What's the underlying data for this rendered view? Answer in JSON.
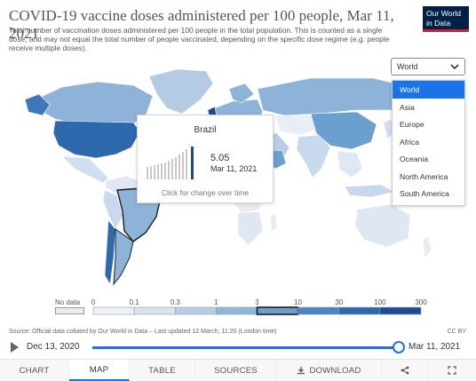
{
  "header": {
    "title": "COVID-19 vaccine doses administered per 100 people, Mar 11, 2021",
    "subtitle": "Total number of vaccination doses administered per 100 people in the total population. This is counted as a single dose, and may not equal the total number of people vaccinated, depending on the specific dose regime (e.g. people receive multiple doses).",
    "logo_line1": "Our World",
    "logo_line2": "in Data"
  },
  "region_select": {
    "selected": "World",
    "options": [
      "World",
      "Asia",
      "Europe",
      "Africa",
      "Oceania",
      "North America",
      "South America"
    ],
    "highlighted": "World"
  },
  "tooltip": {
    "country": "Brazil",
    "value": "5.05",
    "date": "Mar 11, 2021",
    "hint": "Click for change over time"
  },
  "legend": {
    "no_data_label": "No data",
    "ticks": [
      "0",
      "0.1",
      "0.3",
      "1",
      "3",
      "10",
      "30",
      "100",
      "300"
    ],
    "colors": [
      "#ffffff",
      "#eef2f8",
      "#d8e3f0",
      "#b7cfe6",
      "#90b7db",
      "#6b9fd0",
      "#4a86c2",
      "#2f69ad",
      "#1b4b95"
    ],
    "highlighted_bin": "3–10"
  },
  "footer": {
    "source": "Source: Official data collated by Our World in Data – Last updated 12 March, 11:20 (London time)",
    "license": "CC BY"
  },
  "timeline": {
    "start": "Dec 13, 2020",
    "end": "Mar 11, 2021",
    "position": 1.0
  },
  "tabs": [
    {
      "label": "CHART",
      "active": false
    },
    {
      "label": "MAP",
      "active": true
    },
    {
      "label": "TABLE",
      "active": false
    },
    {
      "label": "SOURCES",
      "active": false
    },
    {
      "label": "DOWNLOAD",
      "active": false
    }
  ],
  "icons": {
    "play": "play-icon",
    "chevron": "chevron-down-icon",
    "download": "download-icon",
    "share": "share-icon",
    "fullscreen": "fullscreen-icon"
  },
  "colors": {
    "accent": "#1a73e8",
    "logo_bg": "#002147",
    "logo_accent": "#cc1f2f",
    "highlight_border": "#1d1d1d"
  }
}
